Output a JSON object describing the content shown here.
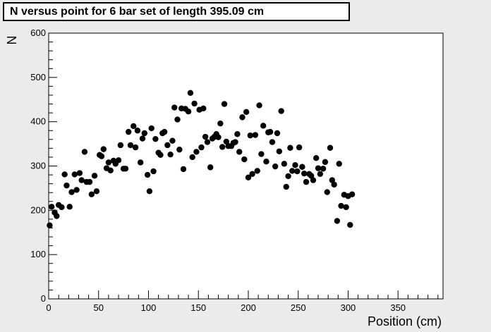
{
  "chart_data": {
    "type": "scatter",
    "title": "N versus point for 6 bar set of length 395.09 cm",
    "xlabel": "Position (cm)",
    "ylabel": "N",
    "xlim": [
      0,
      395.09
    ],
    "ylim": [
      0,
      600
    ],
    "xticks": [
      0,
      50,
      100,
      150,
      200,
      250,
      300,
      350
    ],
    "yticks": [
      0,
      100,
      200,
      300,
      400,
      500,
      600
    ],
    "grid": false,
    "points": [
      [
        1,
        166
      ],
      [
        3,
        208
      ],
      [
        6,
        195
      ],
      [
        8,
        187
      ],
      [
        10,
        212
      ],
      [
        13,
        207
      ],
      [
        16,
        281
      ],
      [
        18,
        256
      ],
      [
        21,
        208
      ],
      [
        23,
        241
      ],
      [
        26,
        281
      ],
      [
        28,
        246
      ],
      [
        31,
        284
      ],
      [
        33,
        268
      ],
      [
        36,
        332
      ],
      [
        38,
        264
      ],
      [
        41,
        264
      ],
      [
        43,
        236
      ],
      [
        46,
        278
      ],
      [
        48,
        243
      ],
      [
        51,
        325
      ],
      [
        53,
        322
      ],
      [
        55,
        338
      ],
      [
        58,
        295
      ],
      [
        60,
        308
      ],
      [
        62,
        290
      ],
      [
        65,
        312
      ],
      [
        67,
        305
      ],
      [
        70,
        313
      ],
      [
        72,
        347
      ],
      [
        75,
        294
      ],
      [
        77,
        294
      ],
      [
        80,
        377
      ],
      [
        82,
        347
      ],
      [
        85,
        390
      ],
      [
        87,
        342
      ],
      [
        89,
        380
      ],
      [
        92,
        308
      ],
      [
        94,
        362
      ],
      [
        96,
        374
      ],
      [
        99,
        280
      ],
      [
        101,
        243
      ],
      [
        103,
        385
      ],
      [
        105,
        288
      ],
      [
        107,
        361
      ],
      [
        110,
        330
      ],
      [
        112,
        325
      ],
      [
        114,
        374
      ],
      [
        116,
        377
      ],
      [
        119,
        347
      ],
      [
        122,
        326
      ],
      [
        124,
        357
      ],
      [
        126,
        432
      ],
      [
        129,
        405
      ],
      [
        131,
        337
      ],
      [
        133,
        430
      ],
      [
        135,
        293
      ],
      [
        137,
        429
      ],
      [
        140,
        423
      ],
      [
        142,
        465
      ],
      [
        144,
        320
      ],
      [
        146,
        441
      ],
      [
        148,
        332
      ],
      [
        151,
        427
      ],
      [
        153,
        342
      ],
      [
        155,
        430
      ],
      [
        157,
        366
      ],
      [
        159,
        354
      ],
      [
        162,
        297
      ],
      [
        164,
        362
      ],
      [
        166,
        366
      ],
      [
        168,
        372
      ],
      [
        170,
        365
      ],
      [
        172,
        396
      ],
      [
        174,
        343
      ],
      [
        176,
        440
      ],
      [
        178,
        355
      ],
      [
        180,
        345
      ],
      [
        183,
        345
      ],
      [
        185,
        352
      ],
      [
        187,
        354
      ],
      [
        189,
        372
      ],
      [
        191,
        332
      ],
      [
        194,
        410
      ],
      [
        196,
        315
      ],
      [
        198,
        422
      ],
      [
        200,
        274
      ],
      [
        202,
        369
      ],
      [
        204,
        282
      ],
      [
        207,
        370
      ],
      [
        209,
        289
      ],
      [
        211,
        437
      ],
      [
        213,
        327
      ],
      [
        215,
        391
      ],
      [
        218,
        310
      ],
      [
        220,
        376
      ],
      [
        222,
        377
      ],
      [
        224,
        354
      ],
      [
        227,
        299
      ],
      [
        229,
        374
      ],
      [
        231,
        333
      ],
      [
        233,
        424
      ],
      [
        236,
        305
      ],
      [
        238,
        253
      ],
      [
        240,
        277
      ],
      [
        242,
        341
      ],
      [
        244,
        289
      ],
      [
        247,
        302
      ],
      [
        249,
        288
      ],
      [
        251,
        342
      ],
      [
        254,
        298
      ],
      [
        256,
        283
      ],
      [
        258,
        264
      ],
      [
        261,
        282
      ],
      [
        263,
        278
      ],
      [
        265,
        268
      ],
      [
        268,
        318
      ],
      [
        270,
        295
      ],
      [
        272,
        282
      ],
      [
        275,
        294
      ],
      [
        277,
        309
      ],
      [
        279,
        241
      ],
      [
        282,
        341
      ],
      [
        284,
        268
      ],
      [
        286,
        258
      ],
      [
        289,
        176
      ],
      [
        291,
        305
      ],
      [
        293,
        210
      ],
      [
        296,
        235
      ],
      [
        298,
        207
      ],
      [
        300,
        232
      ],
      [
        302,
        167
      ],
      [
        304,
        236
      ]
    ]
  }
}
